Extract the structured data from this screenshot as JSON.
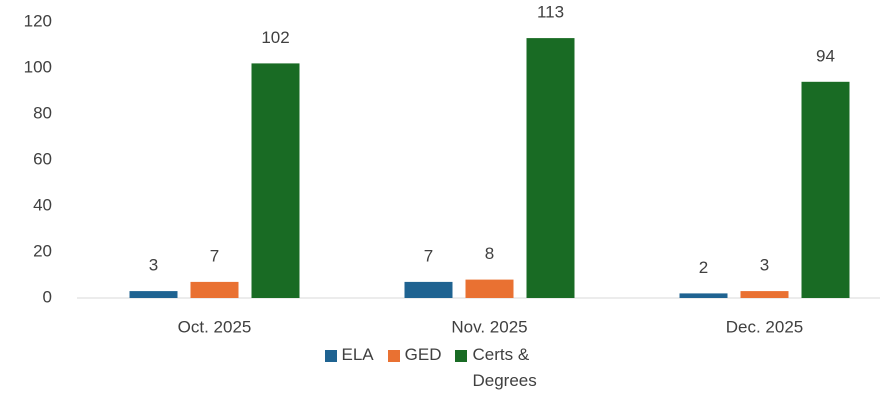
{
  "chart_data": {
    "type": "bar",
    "categories": [
      "Oct. 2025",
      "Nov. 2025",
      "Dec. 2025"
    ],
    "series": [
      {
        "name": "ELA",
        "color": "#1f6391",
        "values": [
          3,
          7,
          2
        ]
      },
      {
        "name": "GED",
        "color": "#e97132",
        "values": [
          7,
          8,
          3
        ]
      },
      {
        "name": "Certs & Degrees",
        "color": "#196b24",
        "values": [
          102,
          113,
          94
        ]
      }
    ],
    "ylim": [
      0,
      120
    ],
    "yticks": [
      0,
      20,
      40,
      60,
      80,
      100,
      120
    ],
    "grid": false,
    "legend": "bottom"
  }
}
